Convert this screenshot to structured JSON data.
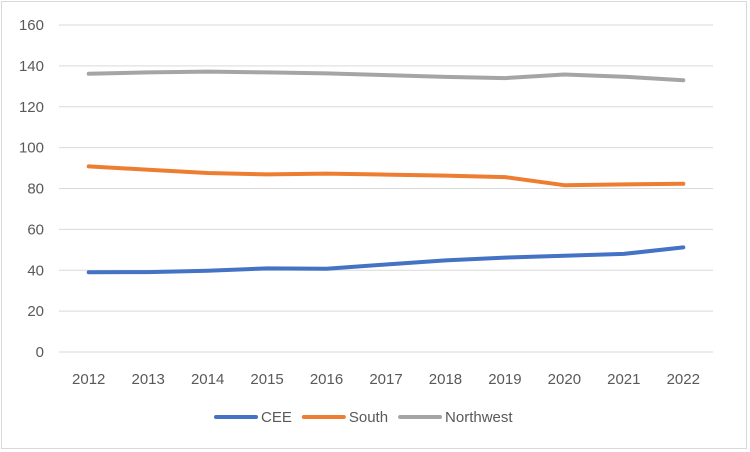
{
  "chart_data": {
    "type": "line",
    "title": "",
    "xlabel": "",
    "ylabel": "",
    "x": [
      "2012",
      "2013",
      "2014",
      "2015",
      "2016",
      "2017",
      "2018",
      "2019",
      "2020",
      "2021",
      "2022"
    ],
    "ylim": [
      0,
      160
    ],
    "yticks": [
      0,
      20,
      40,
      60,
      80,
      100,
      120,
      140,
      160
    ],
    "grid": true,
    "legend_position": "bottom",
    "series": [
      {
        "name": "CEE",
        "color": "#4472C4",
        "values": [
          39.0,
          39.1,
          39.8,
          40.9,
          40.7,
          42.8,
          44.8,
          46.2,
          47.1,
          48.0,
          51.2
        ]
      },
      {
        "name": "South",
        "color": "#ED7D31",
        "values": [
          90.8,
          89.2,
          87.6,
          86.9,
          87.3,
          86.8,
          86.3,
          85.6,
          81.6,
          82.0,
          82.3
        ]
      },
      {
        "name": "Northwest",
        "color": "#A5A5A5",
        "values": [
          136.1,
          136.8,
          137.2,
          136.8,
          136.3,
          135.5,
          134.6,
          134.0,
          135.8,
          134.7,
          133.0
        ]
      }
    ]
  }
}
